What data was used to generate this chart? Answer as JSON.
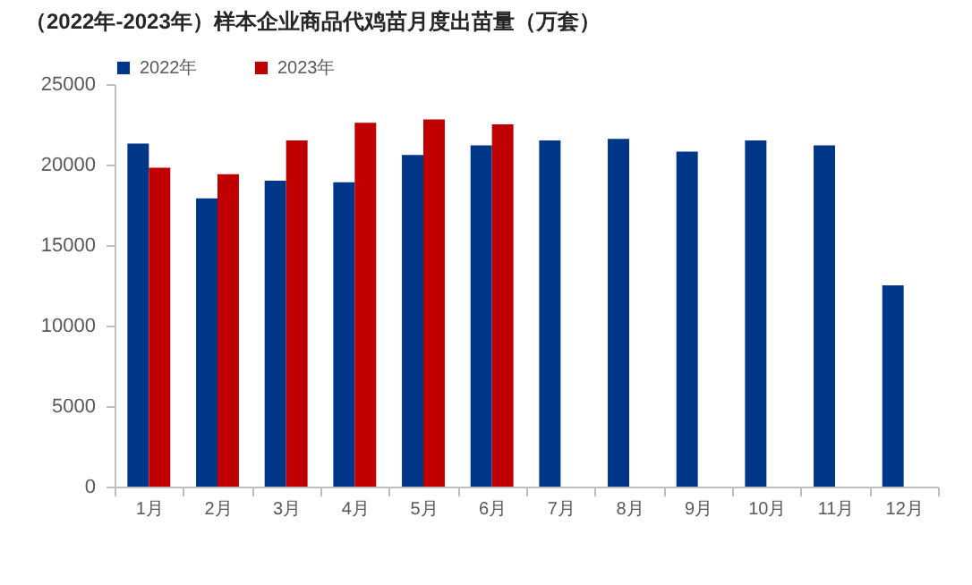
{
  "chart_data": {
    "type": "bar",
    "title": "（2022年-2023年）样本企业商品代鸡苗月度出苗量（万套）",
    "categories": [
      "1月",
      "2月",
      "3月",
      "4月",
      "5月",
      "6月",
      "7月",
      "8月",
      "9月",
      "10月",
      "11月",
      "12月"
    ],
    "series": [
      {
        "name": "2022年",
        "color": "#003687",
        "values": [
          21300,
          17900,
          19000,
          18900,
          20600,
          21200,
          21500,
          21600,
          20800,
          21500,
          21200,
          12500
        ]
      },
      {
        "name": "2023年",
        "color": "#c00000",
        "values": [
          19800,
          19400,
          21500,
          22600,
          22800,
          22500,
          null,
          null,
          null,
          null,
          null,
          null
        ]
      }
    ],
    "ylim": [
      0,
      25000
    ],
    "yticks": [
      0,
      5000,
      10000,
      15000,
      20000,
      25000
    ],
    "grid": false,
    "legend": "top"
  }
}
